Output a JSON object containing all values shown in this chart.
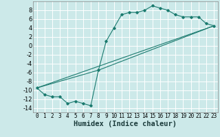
{
  "xlabel": "Humidex (Indice chaleur)",
  "background_color": "#cce9e9",
  "grid_color": "#ffffff",
  "line_color": "#1a7a6e",
  "xlim": [
    -0.5,
    23.5
  ],
  "ylim": [
    -15,
    10
  ],
  "yticks": [
    -14,
    -12,
    -10,
    -8,
    -6,
    -4,
    -2,
    0,
    2,
    4,
    6,
    8
  ],
  "xticks": [
    0,
    1,
    2,
    3,
    4,
    5,
    6,
    7,
    8,
    9,
    10,
    11,
    12,
    13,
    14,
    15,
    16,
    17,
    18,
    19,
    20,
    21,
    22,
    23
  ],
  "curve1_x": [
    0,
    1,
    2,
    3,
    4,
    5,
    6,
    7,
    8,
    9,
    10,
    11,
    12,
    13,
    14,
    15,
    16,
    17,
    18,
    19,
    20,
    21,
    22,
    23
  ],
  "curve1_y": [
    -9.5,
    -11.0,
    -11.5,
    -11.5,
    -13.0,
    -12.5,
    -13.0,
    -13.5,
    -5.5,
    1.0,
    4.0,
    7.0,
    7.5,
    7.5,
    8.0,
    9.0,
    8.5,
    8.0,
    7.0,
    6.5,
    6.5,
    6.5,
    5.0,
    4.5
  ],
  "line2_x": [
    0,
    23
  ],
  "line2_y": [
    -9.5,
    4.5
  ],
  "line3_x": [
    0,
    8,
    23
  ],
  "line3_y": [
    -9.5,
    -5.5,
    4.5
  ]
}
